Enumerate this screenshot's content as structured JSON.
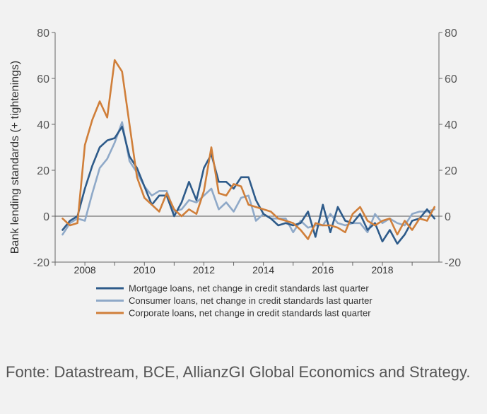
{
  "chart_data": {
    "type": "line",
    "ylabel": "Bank lending standards (+ tightenings)",
    "ylim": [
      -20,
      80
    ],
    "yticks": [
      -20,
      0,
      20,
      40,
      60,
      80
    ],
    "y_tick_labels": [
      "-20",
      "0",
      "20",
      "40",
      "60",
      "80"
    ],
    "xlim": [
      2007,
      2019.9
    ],
    "xticks": [
      2008,
      2010,
      2012,
      2014,
      2016,
      2018
    ],
    "x_tick_labels": [
      "2008",
      "2010",
      "2012",
      "2014",
      "2016",
      "2018"
    ],
    "grid": false,
    "legend_position": "bottom",
    "series": [
      {
        "name": "Mortgage loans, net change in credit standards last quarter",
        "color": "#2e5b8a",
        "points": [
          [
            2007.25,
            -6
          ],
          [
            2007.5,
            -2
          ],
          [
            2007.75,
            0
          ],
          [
            2008.0,
            12
          ],
          [
            2008.25,
            22
          ],
          [
            2008.5,
            30
          ],
          [
            2008.75,
            33
          ],
          [
            2009.0,
            34
          ],
          [
            2009.25,
            39
          ],
          [
            2009.5,
            26
          ],
          [
            2009.75,
            21
          ],
          [
            2010.0,
            13
          ],
          [
            2010.25,
            5
          ],
          [
            2010.5,
            9
          ],
          [
            2010.75,
            9
          ],
          [
            2011.0,
            0
          ],
          [
            2011.25,
            6
          ],
          [
            2011.5,
            15
          ],
          [
            2011.75,
            7
          ],
          [
            2012.0,
            21
          ],
          [
            2012.25,
            27
          ],
          [
            2012.5,
            15
          ],
          [
            2012.75,
            15
          ],
          [
            2013.0,
            12
          ],
          [
            2013.25,
            17
          ],
          [
            2013.5,
            17
          ],
          [
            2013.75,
            7
          ],
          [
            2014.0,
            1
          ],
          [
            2014.25,
            -1
          ],
          [
            2014.5,
            -4
          ],
          [
            2014.75,
            -3
          ],
          [
            2015.0,
            -4
          ],
          [
            2015.25,
            -3
          ],
          [
            2015.5,
            2
          ],
          [
            2015.75,
            -9
          ],
          [
            2016.0,
            5
          ],
          [
            2016.25,
            -7
          ],
          [
            2016.5,
            4
          ],
          [
            2016.75,
            -2
          ],
          [
            2017.0,
            -3
          ],
          [
            2017.25,
            1
          ],
          [
            2017.5,
            -6
          ],
          [
            2017.75,
            -3
          ],
          [
            2018.0,
            -11
          ],
          [
            2018.25,
            -6
          ],
          [
            2018.5,
            -12
          ],
          [
            2018.75,
            -8
          ],
          [
            2019.0,
            -2
          ],
          [
            2019.25,
            -1
          ],
          [
            2019.5,
            3
          ],
          [
            2019.75,
            -1
          ]
        ]
      },
      {
        "name": "Consumer loans, net change in credit standards last quarter",
        "color": "#8fa9c8",
        "points": [
          [
            2007.25,
            -8
          ],
          [
            2007.5,
            -3
          ],
          [
            2007.75,
            -1
          ],
          [
            2008.0,
            -2
          ],
          [
            2008.25,
            10
          ],
          [
            2008.5,
            21
          ],
          [
            2008.75,
            25
          ],
          [
            2009.0,
            32
          ],
          [
            2009.25,
            41
          ],
          [
            2009.5,
            24
          ],
          [
            2009.75,
            19
          ],
          [
            2010.0,
            13
          ],
          [
            2010.25,
            9
          ],
          [
            2010.5,
            11
          ],
          [
            2010.75,
            11
          ],
          [
            2011.0,
            2
          ],
          [
            2011.25,
            3
          ],
          [
            2011.5,
            7
          ],
          [
            2011.75,
            6
          ],
          [
            2012.0,
            9
          ],
          [
            2012.25,
            12
          ],
          [
            2012.5,
            3
          ],
          [
            2012.75,
            6
          ],
          [
            2013.0,
            2
          ],
          [
            2013.25,
            8
          ],
          [
            2013.5,
            9
          ],
          [
            2013.75,
            -2
          ],
          [
            2014.0,
            1
          ],
          [
            2014.25,
            -1
          ],
          [
            2014.5,
            -1
          ],
          [
            2014.75,
            -1
          ],
          [
            2015.0,
            -7
          ],
          [
            2015.25,
            -2
          ],
          [
            2015.5,
            -5
          ],
          [
            2015.75,
            -4
          ],
          [
            2016.0,
            -4
          ],
          [
            2016.25,
            1
          ],
          [
            2016.5,
            -3
          ],
          [
            2016.75,
            -4
          ],
          [
            2017.0,
            -3
          ],
          [
            2017.25,
            -3
          ],
          [
            2017.5,
            -7
          ],
          [
            2017.75,
            1
          ],
          [
            2018.0,
            -3
          ],
          [
            2018.25,
            -1
          ],
          [
            2018.5,
            -3
          ],
          [
            2018.75,
            -4
          ],
          [
            2019.0,
            1
          ],
          [
            2019.25,
            2
          ],
          [
            2019.5,
            2
          ],
          [
            2019.75,
            3
          ]
        ]
      },
      {
        "name": "Corporate loans, net change in credit standards last quarter",
        "color": "#d07f3a",
        "points": [
          [
            2007.25,
            -1
          ],
          [
            2007.5,
            -4
          ],
          [
            2007.75,
            -3
          ],
          [
            2008.0,
            31
          ],
          [
            2008.25,
            42
          ],
          [
            2008.5,
            50
          ],
          [
            2008.75,
            43
          ],
          [
            2009.0,
            68
          ],
          [
            2009.25,
            63
          ],
          [
            2009.5,
            40
          ],
          [
            2009.75,
            17
          ],
          [
            2010.0,
            8
          ],
          [
            2010.25,
            5
          ],
          [
            2010.5,
            2
          ],
          [
            2010.75,
            10
          ],
          [
            2011.0,
            3
          ],
          [
            2011.25,
            0
          ],
          [
            2011.5,
            3
          ],
          [
            2011.75,
            1
          ],
          [
            2012.0,
            11
          ],
          [
            2012.25,
            30
          ],
          [
            2012.5,
            10
          ],
          [
            2012.75,
            9
          ],
          [
            2013.0,
            14
          ],
          [
            2013.25,
            13
          ],
          [
            2013.5,
            5
          ],
          [
            2013.75,
            4
          ],
          [
            2014.0,
            3
          ],
          [
            2014.25,
            2
          ],
          [
            2014.5,
            -1
          ],
          [
            2014.75,
            -2
          ],
          [
            2015.0,
            -3
          ],
          [
            2015.25,
            -6
          ],
          [
            2015.5,
            -10
          ],
          [
            2015.75,
            -3
          ],
          [
            2016.0,
            -4
          ],
          [
            2016.25,
            -4
          ],
          [
            2016.5,
            -5
          ],
          [
            2016.75,
            -7
          ],
          [
            2017.0,
            1
          ],
          [
            2017.25,
            4
          ],
          [
            2017.5,
            -2
          ],
          [
            2017.75,
            -4
          ],
          [
            2018.0,
            -2
          ],
          [
            2018.25,
            -1
          ],
          [
            2018.5,
            -8
          ],
          [
            2018.75,
            -2
          ],
          [
            2019.0,
            -6
          ],
          [
            2019.25,
            -1
          ],
          [
            2019.5,
            -2
          ],
          [
            2019.75,
            4
          ]
        ]
      }
    ]
  },
  "source": {
    "text": "Fonte: Datastream, BCE, AllianzGI Global Economics and Strategy."
  }
}
